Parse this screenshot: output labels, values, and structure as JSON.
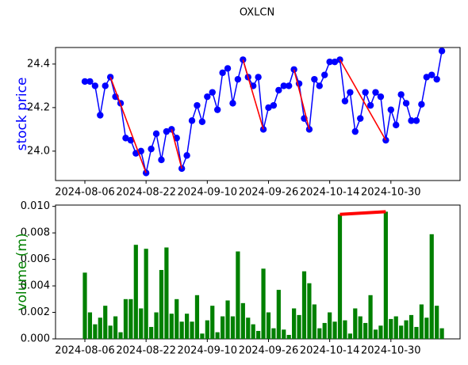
{
  "title": "OXLCN",
  "chart_data": [
    {
      "type": "line",
      "ylabel": "stock price",
      "ylabel_color": "#0000ff",
      "color": "#0000ff",
      "trend_color": "#ff0000",
      "categories": [
        "2024-08-06",
        null,
        null,
        null,
        null,
        null,
        null,
        null,
        null,
        null,
        null,
        null,
        "2024-08-22",
        null,
        null,
        null,
        null,
        null,
        null,
        null,
        null,
        null,
        null,
        null,
        "2024-09-10",
        null,
        null,
        null,
        null,
        null,
        null,
        null,
        null,
        null,
        null,
        null,
        "2024-09-26",
        null,
        null,
        null,
        null,
        null,
        null,
        null,
        null,
        null,
        null,
        null,
        "2024-10-14",
        null,
        null,
        null,
        null,
        null,
        null,
        null,
        null,
        null,
        null,
        null,
        "2024-10-30",
        null,
        null,
        null,
        null,
        null,
        null,
        null,
        null,
        null,
        null
      ],
      "values": [
        24.32,
        24.32,
        24.3,
        24.165,
        24.3,
        24.34,
        24.25,
        24.22,
        24.06,
        24.05,
        23.99,
        24.0,
        23.9,
        24.01,
        24.08,
        23.96,
        24.09,
        24.1,
        24.06,
        23.92,
        23.98,
        24.14,
        24.21,
        24.135,
        24.25,
        24.27,
        24.19,
        24.36,
        24.38,
        24.22,
        24.33,
        24.42,
        24.34,
        24.3,
        24.34,
        24.1,
        24.2,
        24.21,
        24.28,
        24.3,
        24.3,
        24.375,
        24.31,
        24.15,
        24.1,
        24.33,
        24.3,
        24.35,
        24.41,
        24.41,
        24.42,
        24.23,
        24.27,
        24.09,
        24.15,
        24.27,
        24.21,
        24.27,
        24.25,
        24.05,
        24.19,
        24.12,
        24.26,
        24.22,
        24.14,
        24.14,
        24.215,
        24.34,
        24.35,
        24.33,
        24.46
      ],
      "trend_segments": [
        [
          5,
          12
        ],
        [
          17,
          19
        ],
        [
          31,
          35
        ],
        [
          41,
          44
        ],
        [
          50,
          59
        ]
      ],
      "ylim": [
        23.865,
        24.476
      ],
      "yticks": [
        {
          "value": 24.0,
          "label": "24.0"
        },
        {
          "value": 24.2,
          "label": "24.2"
        },
        {
          "value": 24.4,
          "label": "24.4"
        }
      ]
    },
    {
      "type": "bar",
      "ylabel": "volume (m)",
      "ylabel_color": "#008000",
      "color": "#008000",
      "trend_color": "#ff0000",
      "categories": [
        "2024-08-06",
        null,
        null,
        null,
        null,
        null,
        null,
        null,
        null,
        null,
        null,
        null,
        "2024-08-22",
        null,
        null,
        null,
        null,
        null,
        null,
        null,
        null,
        null,
        null,
        null,
        "2024-09-10",
        null,
        null,
        null,
        null,
        null,
        null,
        null,
        null,
        null,
        null,
        null,
        "2024-09-26",
        null,
        null,
        null,
        null,
        null,
        null,
        null,
        null,
        null,
        null,
        null,
        "2024-10-14",
        null,
        null,
        null,
        null,
        null,
        null,
        null,
        null,
        null,
        null,
        null,
        "2024-10-30",
        null,
        null,
        null,
        null,
        null,
        null,
        null,
        null,
        null,
        null
      ],
      "values": [
        0.005,
        0.002,
        0.0011,
        0.0016,
        0.0025,
        0.001,
        0.0017,
        0.0005,
        0.003,
        0.003,
        0.0071,
        0.0023,
        0.0068,
        0.0009,
        0.002,
        0.0052,
        0.0069,
        0.0019,
        0.003,
        0.0013,
        0.0019,
        0.0013,
        0.0033,
        0.0004,
        0.0014,
        0.0025,
        0.0005,
        0.0017,
        0.0029,
        0.0017,
        0.0066,
        0.0027,
        0.0016,
        0.0011,
        0.0006,
        0.0053,
        0.002,
        0.0008,
        0.0037,
        0.0007,
        0.0003,
        0.0023,
        0.0018,
        0.0051,
        0.0042,
        0.0026,
        0.0008,
        0.0012,
        0.002,
        0.0013,
        0.0094,
        0.0014,
        0.0004,
        0.0023,
        0.0017,
        0.0012,
        0.0033,
        0.0007,
        0.001,
        0.0096,
        0.0015,
        0.0017,
        0.001,
        0.0014,
        0.0018,
        0.0009,
        0.0026,
        0.0016,
        0.0079,
        0.0025,
        0.0008
      ],
      "trend_segments": [
        [
          50,
          59
        ]
      ],
      "ylim": [
        0,
        0.0101
      ],
      "yticks": [
        {
          "value": 0,
          "label": "0.000"
        },
        {
          "value": 0.002,
          "label": "0.002"
        },
        {
          "value": 0.004,
          "label": "0.004"
        },
        {
          "value": 0.006,
          "label": "0.006"
        },
        {
          "value": 0.008,
          "label": "0.008"
        },
        {
          "value": 0.01,
          "label": "0.010"
        }
      ]
    }
  ]
}
